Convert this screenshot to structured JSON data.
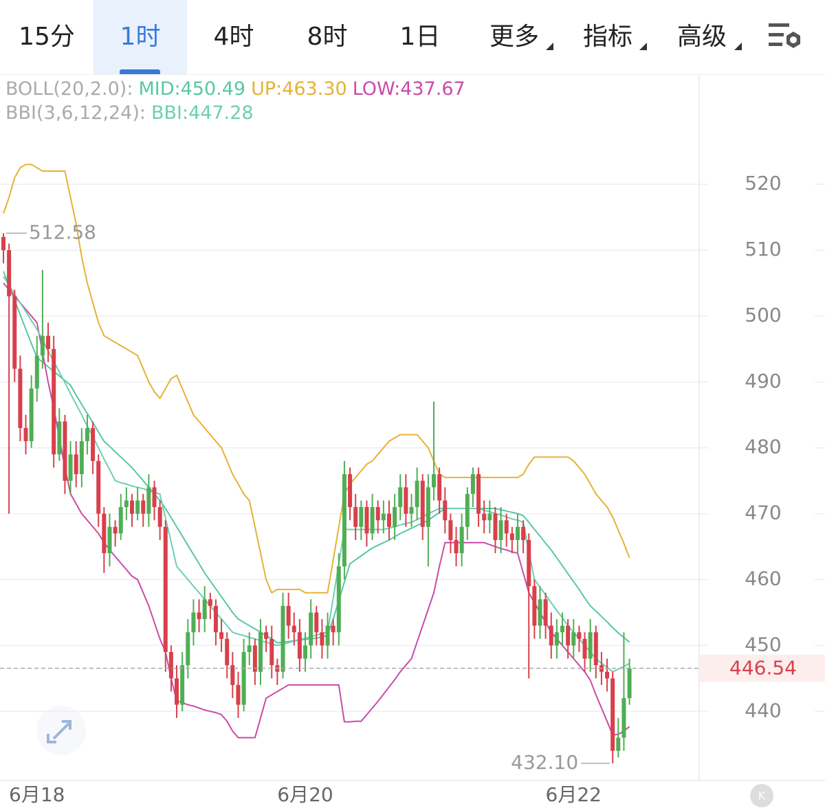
{
  "tabs": [
    "15分",
    "1时",
    "4时",
    "8时",
    "1日",
    "更多",
    "指标",
    "高级"
  ],
  "chart_data": {
    "type": "candlestick",
    "indicators": [
      {
        "label": "BOLL(20,2.0):",
        "items": [
          "MID:450.49",
          "UP:463.30",
          "LOW:437.67"
        ]
      },
      {
        "label": "BBI(3,6,12,24):",
        "items": [
          "BBI:447.28"
        ]
      }
    ],
    "categories": [
      null,
      null,
      null,
      null,
      null,
      null,
      "6月18",
      null,
      null,
      null,
      null,
      null,
      null,
      null,
      null,
      null,
      null,
      null,
      null,
      null,
      null,
      null,
      null,
      null,
      null,
      null,
      null,
      null,
      null,
      null,
      null,
      null,
      null,
      null,
      null,
      null,
      null,
      null,
      null,
      null,
      null,
      null,
      null,
      null,
      null,
      null,
      null,
      null,
      null,
      null,
      null,
      null,
      null,
      null,
      "6月20",
      null,
      null,
      null,
      null,
      null,
      null,
      null,
      null,
      null,
      null,
      null,
      null,
      null,
      null,
      null,
      null,
      null,
      null,
      null,
      null,
      null,
      null,
      null,
      null,
      null,
      null,
      null,
      null,
      null,
      null,
      null,
      null,
      null,
      null,
      null,
      null,
      null,
      null,
      null,
      null,
      null,
      null,
      null,
      null,
      null,
      null,
      null,
      "6月22",
      null,
      null,
      null,
      null,
      null,
      null,
      null,
      null,
      null,
      null
    ],
    "open": [
      512,
      510,
      503,
      492,
      483,
      481,
      489,
      494,
      497,
      495,
      479,
      484,
      475,
      479,
      476,
      481,
      483,
      478,
      470,
      464,
      468,
      467,
      471,
      472,
      470,
      472,
      470,
      474,
      471,
      468,
      449,
      445,
      441,
      447,
      452,
      455,
      454,
      457,
      456,
      452,
      451,
      447,
      444,
      441,
      449,
      450,
      446,
      452,
      451,
      447,
      446,
      456,
      453,
      452,
      448,
      450,
      455,
      452,
      450,
      453,
      452,
      462,
      476,
      471,
      468,
      471,
      467,
      471,
      469,
      470,
      468,
      471,
      474,
      470,
      471,
      475,
      468,
      474,
      476,
      472,
      469,
      466,
      464,
      468,
      473,
      476,
      470,
      469,
      470,
      466,
      469,
      467,
      466,
      468,
      466,
      459,
      453,
      457,
      453,
      450,
      452,
      453,
      450,
      452,
      451,
      448,
      452,
      447,
      446,
      445,
      434,
      436,
      442
    ],
    "high": [
      512.58,
      511,
      504,
      494,
      485,
      491,
      497,
      507,
      499,
      497,
      486,
      485,
      481,
      481,
      483,
      485,
      484,
      479,
      471,
      470,
      469,
      473,
      474,
      473,
      474,
      473,
      476,
      475,
      472,
      469,
      450,
      447,
      449,
      454,
      457,
      457,
      459,
      458,
      457,
      454,
      452,
      449,
      446,
      451,
      452,
      451,
      454,
      453,
      453,
      448,
      458,
      458,
      455,
      454,
      452,
      457,
      456,
      454,
      455,
      454,
      464,
      478,
      477,
      473,
      472,
      472,
      473,
      472,
      472,
      472,
      473,
      476,
      476,
      473,
      477,
      476,
      476,
      487,
      477,
      474,
      470,
      468,
      470,
      474,
      477,
      477,
      472,
      472,
      471,
      471,
      470,
      468,
      470,
      469,
      467,
      460,
      459,
      458,
      455,
      454,
      455,
      454,
      454,
      453,
      452,
      454,
      453,
      449,
      448,
      446,
      439,
      452,
      448
    ],
    "low": [
      508,
      470,
      490,
      481,
      479,
      480,
      487,
      492,
      493,
      477,
      478,
      473,
      473,
      474,
      474,
      479,
      476,
      468,
      461,
      462,
      465,
      466,
      469,
      468,
      469,
      468,
      468,
      469,
      466,
      446,
      443,
      439,
      440,
      445,
      450,
      452,
      452,
      454,
      450,
      449,
      445,
      442,
      439,
      440,
      447,
      444,
      444,
      449,
      445,
      444,
      445,
      451,
      450,
      446,
      446,
      448,
      450,
      448,
      448,
      450,
      450,
      460,
      469,
      466,
      466,
      465,
      466,
      467,
      467,
      466,
      466,
      469,
      468,
      468,
      469,
      466,
      462,
      472,
      470,
      467,
      464,
      462,
      462,
      466,
      471,
      468,
      467,
      467,
      464,
      464,
      465,
      464,
      464,
      464,
      445,
      451,
      451,
      451,
      448,
      448,
      450,
      448,
      448,
      449,
      446,
      446,
      445,
      444,
      443,
      432.1,
      433,
      434,
      441
    ],
    "close": [
      510,
      503,
      492,
      483,
      481,
      489,
      494,
      497,
      495,
      479,
      484,
      475,
      479,
      476,
      481,
      483,
      478,
      470,
      464,
      468,
      467,
      471,
      472,
      470,
      472,
      470,
      474,
      471,
      468,
      449,
      445,
      441,
      447,
      452,
      455,
      454,
      457,
      456,
      452,
      451,
      447,
      444,
      441,
      449,
      450,
      446,
      452,
      451,
      447,
      446,
      456,
      453,
      452,
      448,
      450,
      455,
      452,
      450,
      453,
      452,
      462,
      476,
      471,
      468,
      471,
      467,
      471,
      469,
      470,
      468,
      471,
      474,
      470,
      471,
      475,
      468,
      474,
      476,
      472,
      469,
      466,
      464,
      468,
      473,
      476,
      470,
      469,
      470,
      466,
      469,
      467,
      466,
      468,
      466,
      459,
      453,
      457,
      453,
      450,
      452,
      453,
      450,
      452,
      451,
      448,
      452,
      447,
      446,
      445,
      434,
      436,
      442,
      446.54
    ],
    "up_color": "#4fae55",
    "down_color": "#d8404c",
    "lines": [
      {
        "color": "#58c7a4",
        "values": [
          506.8,
          504.6,
          502.4,
          500.2,
          498,
          495.8,
          493.7,
          493,
          492.3,
          491.6,
          490.9,
          490.2,
          489.5,
          488,
          486.6,
          485.2,
          483.8,
          482.4,
          481,
          480.2,
          479.4,
          478.6,
          477.8,
          477,
          476,
          475,
          474,
          473,
          472,
          470.8,
          469.4,
          468,
          466.6,
          465.2,
          463.8,
          462.4,
          461,
          459.8,
          458.6,
          457.4,
          456.2,
          455,
          454,
          453.5,
          453,
          452.5,
          452,
          451.5,
          451,
          450.4,
          450.5,
          450.6,
          450.7,
          450.8,
          450.9,
          451,
          451.1,
          451.3,
          451.5,
          454,
          456.8,
          459.6,
          462.4,
          463,
          463.6,
          464.2,
          464.8,
          465.2,
          465.6,
          466,
          466.5,
          467,
          467.4,
          467.8,
          468.2,
          468.6,
          469,
          469.6,
          470.2,
          470.8,
          470.8,
          470.8,
          470.8,
          470.8,
          470.8,
          470.8,
          470.8,
          470.8,
          470.8,
          470.6,
          470.4,
          470.2,
          470,
          469.7,
          468.7,
          467.6,
          466.6,
          465.5,
          464.5,
          463.3,
          462.1,
          460.9,
          459.7,
          458.5,
          457.2,
          456,
          455.2,
          454.4,
          453.6,
          452.7,
          451.9,
          451.2,
          450.49
        ]
      },
      {
        "color": "#e5b236",
        "values": [
          515.6,
          518,
          521,
          522.5,
          523,
          523,
          522.5,
          522,
          522,
          522,
          522,
          522,
          518,
          514,
          509,
          505,
          502,
          499,
          497,
          496.5,
          496,
          495.5,
          495,
          494.5,
          494,
          492,
          490,
          488.5,
          487.5,
          489,
          490.5,
          491,
          489,
          487,
          485,
          484,
          483,
          482,
          481,
          480,
          478,
          476,
          474.5,
          473,
          472,
          468,
          464,
          460,
          458,
          458.5,
          458.5,
          458.5,
          458.5,
          458.5,
          458,
          458,
          458,
          458,
          458,
          463,
          468,
          473,
          474.5,
          475.5,
          476.5,
          477.5,
          478,
          479,
          480,
          481,
          481.5,
          482,
          482,
          482,
          482,
          481,
          480,
          478,
          476,
          475.5,
          475.5,
          475.5,
          475.5,
          475.5,
          475.5,
          475.5,
          475.5,
          475.5,
          475.5,
          475.5,
          475.5,
          475.5,
          475.5,
          476,
          477.5,
          478.6,
          478.6,
          478.6,
          478.6,
          478.6,
          478.6,
          478.6,
          478,
          477,
          476,
          474.5,
          473,
          472,
          471,
          469.5,
          467.5,
          465.5,
          463.3
        ]
      },
      {
        "color": "#c94aa8",
        "values": [
          505,
          504,
          503,
          502,
          501,
          500,
          499,
          494.5,
          490,
          486,
          481.5,
          477,
          473,
          471.5,
          470,
          469,
          468,
          467,
          465.6,
          464.5,
          463.5,
          462.5,
          461.5,
          460.5,
          460,
          458,
          456,
          453.5,
          451,
          449,
          445,
          441.6,
          441.3,
          441,
          440.8,
          440.5,
          440.2,
          440,
          439.8,
          439.5,
          438.5,
          437,
          436,
          436,
          436,
          436,
          439,
          442,
          442.5,
          443,
          443.5,
          444,
          444,
          444,
          444,
          444,
          444,
          444,
          444,
          444,
          444,
          438.4,
          438.4,
          438.5,
          438.5,
          439.5,
          440.5,
          441.5,
          442.6,
          443.7,
          444.8,
          446,
          447,
          448,
          450.5,
          453,
          455.5,
          458,
          462,
          465.6,
          465.6,
          465.6,
          465.6,
          465.6,
          465.6,
          465.6,
          465.6,
          465.3,
          465,
          464.7,
          464.5,
          464.2,
          464,
          461,
          458,
          456.5,
          455,
          453.5,
          452,
          451,
          450,
          449,
          448,
          447,
          446,
          444.7,
          442.5,
          440.5,
          438.5,
          436.4,
          436.5,
          437,
          437.67
        ]
      },
      {
        "color": "#6ccfb0",
        "values": [
          506,
          504.7,
          503.3,
          502,
          500.7,
          499.3,
          498,
          496.4,
          494.7,
          493.1,
          491.5,
          489.9,
          488.2,
          486.6,
          485,
          483.3,
          481.7,
          480,
          478.3,
          476.7,
          475,
          474.7,
          474.5,
          474.2,
          474,
          473.8,
          473.5,
          473.2,
          473,
          469.3,
          465.7,
          462,
          461,
          460,
          459,
          458,
          457,
          456,
          455,
          454,
          453,
          452,
          451.7,
          451.5,
          451.2,
          451,
          450.7,
          450.5,
          450.2,
          450,
          450.2,
          450.4,
          450.7,
          450.9,
          451.1,
          451.3,
          451.6,
          451.8,
          452,
          457.2,
          462.4,
          467.6,
          467.6,
          467.6,
          467.6,
          467.6,
          467.6,
          467.6,
          467.6,
          467.8,
          468,
          468.3,
          468.5,
          468.7,
          469.1,
          469.5,
          470,
          470.4,
          470.8,
          470.8,
          470.8,
          470.8,
          470.8,
          470.8,
          470.8,
          470.8,
          470.5,
          470.3,
          470,
          469.8,
          469.5,
          469.2,
          469,
          468.7,
          464.3,
          460,
          458.8,
          457.7,
          456.5,
          455.3,
          454.2,
          453,
          452,
          451,
          450,
          449,
          448,
          447.3,
          446.7,
          446,
          446.4,
          446.8,
          447.28
        ]
      }
    ],
    "max_label": "512.58",
    "min_label": "432.10",
    "ylim": [
      429.6,
      536.5
    ],
    "yticks": [
      440,
      450,
      460,
      470,
      480,
      490,
      500,
      510,
      520
    ],
    "grid": true
  }
}
